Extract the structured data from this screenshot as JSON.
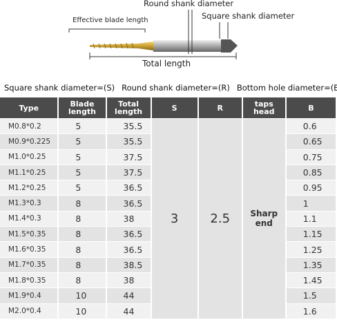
{
  "diagram": {
    "blade_label": "Effective blade length",
    "round_label": "Round shank diameter",
    "square_label": "Square shank diameter",
    "total_label": "Total length"
  },
  "legend": [
    "Square shank diameter=(S)",
    "Round shank diameter=(R)",
    "Bottom hole diameter=(B)"
  ],
  "table": {
    "headers": [
      "Type",
      "Blade length",
      "Total length",
      "S",
      "R",
      "taps head",
      "B"
    ],
    "rows": [
      [
        "M0.8*0.2",
        5,
        35.5,
        0.6
      ],
      [
        "M0.9*0.225",
        5,
        35.5,
        0.65
      ],
      [
        "M1.0*0.25",
        5,
        37.5,
        0.75
      ],
      [
        "M1.1*0.25",
        5,
        37.5,
        0.85
      ],
      [
        "M1.2*0.25",
        5,
        36.5,
        0.95
      ],
      [
        "M1.3*0.3",
        8,
        36.5,
        1
      ],
      [
        "M1.4*0.3",
        8,
        38,
        1.1
      ],
      [
        "M1.5*0.35",
        8,
        36.5,
        1.15
      ],
      [
        "M1.6*0.35",
        8,
        36.5,
        1.25
      ],
      [
        "M1.7*0.35",
        8,
        38.5,
        1.35
      ],
      [
        "M1.8*0.35",
        8,
        38,
        1.45
      ],
      [
        "M1.9*0.4",
        10,
        44,
        1.5
      ],
      [
        "M2.0*0.4",
        10,
        44,
        1.6
      ]
    ],
    "S": 3,
    "R": 2.5,
    "taps_head": "Sharp end"
  }
}
